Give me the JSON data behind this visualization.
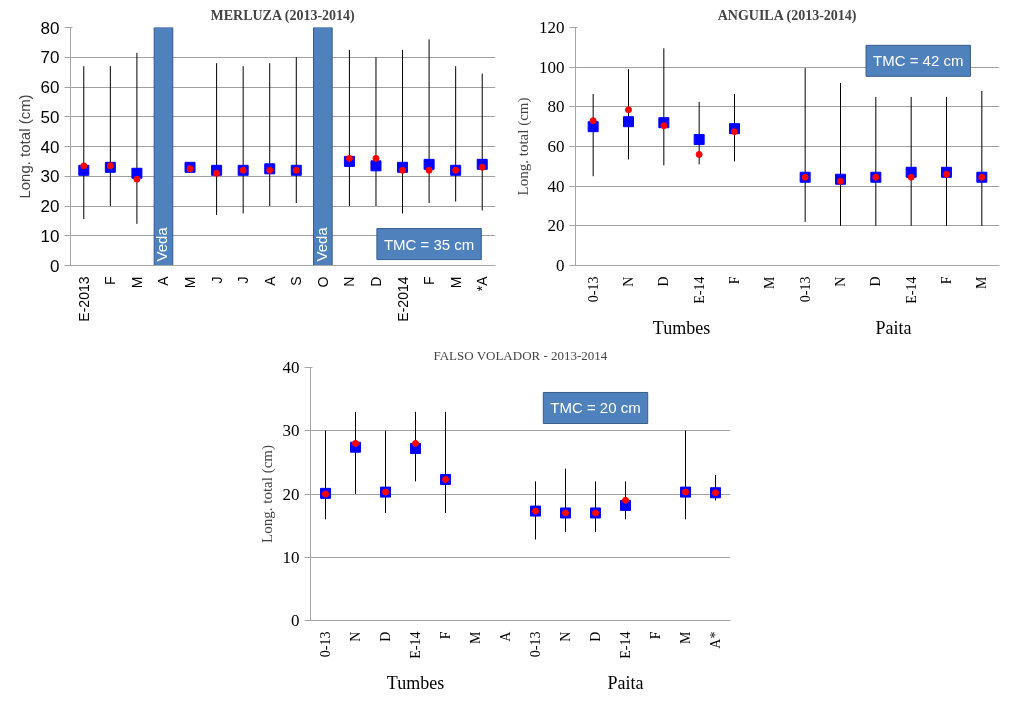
{
  "chart_data": [
    {
      "type": "scatter",
      "title": "MERLUZA (2013-2014)",
      "ylabel": "Long. total (cm)",
      "categories": [
        "E-2013",
        "F",
        "M",
        "A",
        "M",
        "J",
        "J",
        "A",
        "S",
        "O",
        "N",
        "D",
        "E-2014",
        "F",
        "M",
        "*A"
      ],
      "ylim": [
        0,
        80
      ],
      "yticks": [
        0,
        10,
        20,
        30,
        40,
        50,
        60,
        70,
        80
      ],
      "grid": "y",
      "annotations": [
        "TMC = 35 cm"
      ],
      "series": [
        {
          "type": "bar",
          "color": "#4f81bd",
          "values": [
            null,
            null,
            null,
            80,
            null,
            null,
            null,
            null,
            null,
            80,
            null,
            null,
            null,
            null,
            null,
            null
          ],
          "value_labels": [
            null,
            null,
            null,
            "Veda",
            null,
            null,
            null,
            null,
            null,
            "Veda",
            null,
            null,
            null,
            null,
            null,
            null
          ]
        },
        {
          "marker": "square",
          "color": "#0000ff",
          "values": [
            32,
            33,
            31,
            null,
            33,
            32,
            32,
            32.5,
            32,
            null,
            35,
            33.5,
            33,
            34,
            32,
            34
          ],
          "errors": [
            [
              15.6,
              67
            ],
            [
              20,
              67
            ],
            [
              14,
              71.5
            ],
            null,
            null,
            [
              17,
              68
            ],
            [
              17.5,
              67
            ],
            [
              20,
              68
            ],
            [
              21,
              70
            ],
            null,
            [
              20,
              72.5
            ],
            [
              20,
              70
            ],
            [
              17.5,
              72.5
            ],
            [
              21,
              76
            ],
            [
              21.5,
              67
            ],
            [
              18.5,
              64.5
            ]
          ]
        },
        {
          "marker": "circle",
          "color": "#ff0000",
          "values": [
            33.5,
            33.5,
            29,
            null,
            32.5,
            31,
            32,
            32,
            32,
            null,
            36,
            36,
            32,
            32,
            32,
            33
          ]
        }
      ]
    },
    {
      "type": "scatter",
      "title": "ANGUILA (2013-2014)",
      "ylabel": "Long. total (cm)",
      "categories": [
        "0-13",
        "N",
        "D",
        "E-14",
        "F",
        "M",
        "0-13",
        "N",
        "D",
        "E-14",
        "F",
        "M"
      ],
      "ylim": [
        0,
        120
      ],
      "yticks": [
        0,
        20,
        40,
        60,
        80,
        100,
        120
      ],
      "grid": "y",
      "annotations": [
        "TMC = 42 cm",
        "Tumbes",
        "Paita"
      ],
      "series": [
        {
          "marker": "square",
          "color": "#0000ff",
          "values": [
            70,
            72.5,
            72,
            63.5,
            69,
            null,
            44.5,
            43.5,
            44.5,
            47,
            47,
            44.5
          ],
          "errors": [
            [
              45,
              86.5
            ],
            [
              53.5,
              99
            ],
            [
              50.5,
              109.5
            ],
            [
              51,
              82.5
            ],
            [
              52.5,
              86.5
            ],
            null,
            [
              22,
              99.5
            ],
            [
              20,
              92
            ],
            [
              20,
              85
            ],
            [
              20,
              85
            ],
            [
              20,
              85
            ],
            [
              20,
              88
            ]
          ]
        },
        {
          "marker": "circle",
          "color": "#ff0000",
          "values": [
            73,
            78.5,
            70.5,
            56,
            67.5,
            null,
            44.5,
            42.5,
            44.5,
            44.5,
            46,
            44.5
          ]
        }
      ]
    },
    {
      "type": "scatter",
      "title": "FALSO VOLADOR - 2013-2014",
      "ylabel": "Long. total (cm)",
      "categories": [
        "0-13",
        "N",
        "D",
        "E-14",
        "F",
        "M",
        "A",
        "0-13",
        "N",
        "D",
        "E-14",
        "F",
        "M",
        "A*"
      ],
      "ylim": [
        0,
        40
      ],
      "yticks": [
        0,
        10,
        20,
        30,
        40
      ],
      "grid": "y",
      "annotations": [
        "TMC = 20 cm",
        "Tumbes",
        "Paita"
      ],
      "series": [
        {
          "marker": "square",
          "color": "#0000ff",
          "values": [
            20.1,
            27.4,
            20.3,
            27.2,
            22.3,
            null,
            null,
            17.3,
            17,
            17,
            18.2,
            null,
            20.3,
            20.2
          ],
          "errors": [
            [
              16,
              30
            ],
            [
              20,
              33
            ],
            [
              17,
              30
            ],
            [
              22,
              33
            ],
            [
              17,
              33
            ],
            null,
            null,
            [
              12.8,
              22
            ],
            [
              14,
              24
            ],
            [
              14,
              22
            ],
            [
              16,
              22
            ],
            null,
            [
              16,
              30
            ],
            [
              19,
              23
            ]
          ]
        },
        {
          "marker": "circle",
          "color": "#ff0000",
          "values": [
            20,
            28,
            20.3,
            28,
            22.3,
            null,
            null,
            17.3,
            17,
            17,
            19,
            null,
            20.3,
            20.2
          ]
        }
      ]
    }
  ]
}
